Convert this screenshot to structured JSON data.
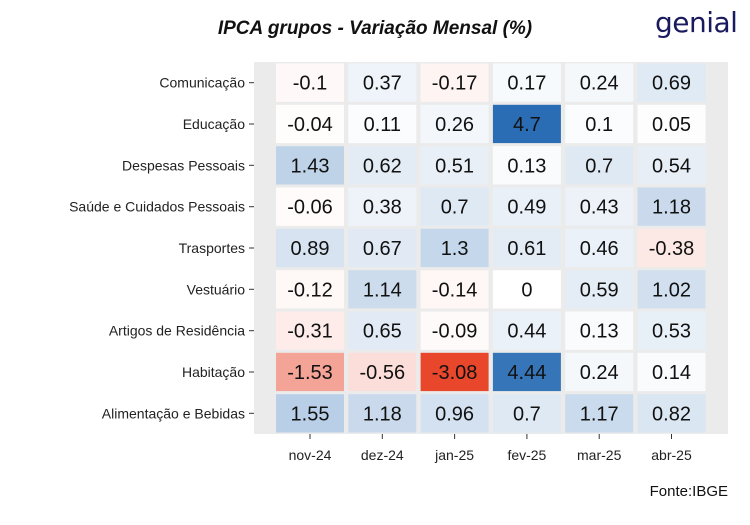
{
  "title": "IPCA grupos - Variação Mensal (%)",
  "logo_text": "genial",
  "source": "Fonte:IBGE",
  "colors": {
    "panel": "#ebebeb",
    "low": "#e8472c",
    "mid": "#ffffff",
    "high": "#2b6db5"
  },
  "chart_data": {
    "type": "heatmap",
    "title": "IPCA grupos - Variação Mensal (%)",
    "xlabel": "",
    "ylabel": "",
    "x_categories": [
      "nov-24",
      "dez-24",
      "jan-25",
      "fev-25",
      "mar-25",
      "abr-25"
    ],
    "y_categories": [
      "Comunicação",
      "Educação",
      "Despesas Pessoais",
      "Saúde e Cuidados Pessoais",
      "Trasportes",
      "Vestuário",
      "Artigos de Residência",
      "Habitação",
      "Alimentação e Bebidas"
    ],
    "values": [
      [
        -0.1,
        0.37,
        -0.17,
        0.17,
        0.24,
        0.69
      ],
      [
        -0.04,
        0.11,
        0.26,
        4.7,
        0.1,
        0.05
      ],
      [
        1.43,
        0.62,
        0.51,
        0.13,
        0.7,
        0.54
      ],
      [
        -0.06,
        0.38,
        0.7,
        0.49,
        0.43,
        1.18
      ],
      [
        0.89,
        0.67,
        1.3,
        0.61,
        0.46,
        -0.38
      ],
      [
        -0.12,
        1.14,
        -0.14,
        0,
        0.59,
        1.02
      ],
      [
        -0.31,
        0.65,
        -0.09,
        0.44,
        0.13,
        0.53
      ],
      [
        -1.53,
        -0.56,
        -3.08,
        4.44,
        0.24,
        0.14
      ],
      [
        1.55,
        1.18,
        0.96,
        0.7,
        1.17,
        0.82
      ]
    ],
    "color_scale": {
      "min": -3.08,
      "mid": 0,
      "max": 4.7
    },
    "legend": "none",
    "grid": false
  }
}
